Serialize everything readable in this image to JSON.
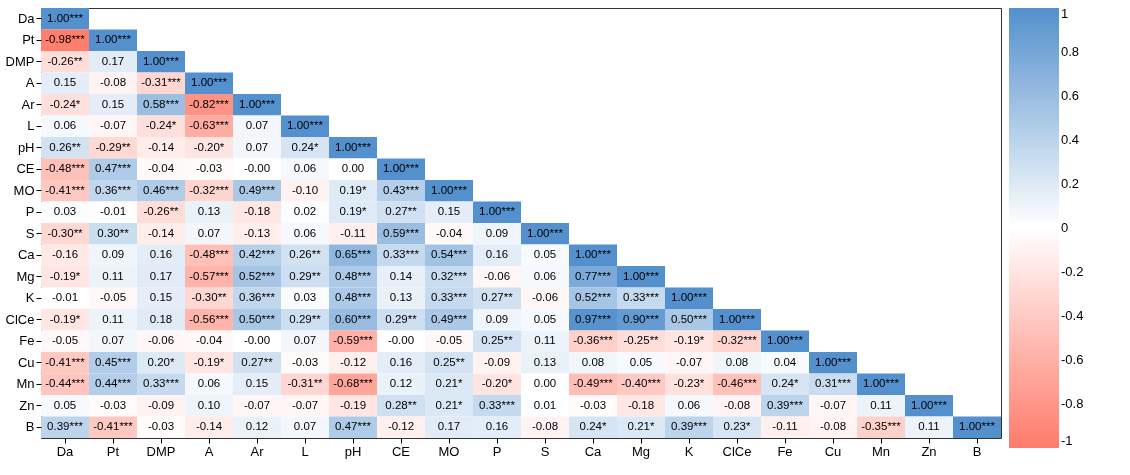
{
  "chart_data": {
    "type": "heatmap",
    "categories": [
      "Da",
      "Pt",
      "DMP",
      "A",
      "Ar",
      "L",
      "pH",
      "CE",
      "MO",
      "P",
      "S",
      "Ca",
      "Mg",
      "K",
      "ClCe",
      "Fe",
      "Cu",
      "Mn",
      "Zn",
      "B"
    ],
    "y_categories": [
      "Da",
      "Pt",
      "DMP",
      "A",
      "Ar",
      "L",
      "pH",
      "CE",
      "MO",
      "P",
      "S",
      "Ca",
      "Mg",
      "K",
      "ClCe",
      "Fe",
      "Cu",
      "Mn",
      "Zn",
      "B"
    ],
    "cells": [
      [
        1.0,
        null,
        null,
        null,
        null,
        null,
        null,
        null,
        null,
        null,
        null,
        null,
        null,
        null,
        null,
        null,
        null,
        null,
        null,
        null
      ],
      [
        -0.98,
        1.0,
        null,
        null,
        null,
        null,
        null,
        null,
        null,
        null,
        null,
        null,
        null,
        null,
        null,
        null,
        null,
        null,
        null,
        null
      ],
      [
        -0.26,
        0.17,
        1.0,
        null,
        null,
        null,
        null,
        null,
        null,
        null,
        null,
        null,
        null,
        null,
        null,
        null,
        null,
        null,
        null,
        null
      ],
      [
        0.15,
        -0.08,
        -0.31,
        1.0,
        null,
        null,
        null,
        null,
        null,
        null,
        null,
        null,
        null,
        null,
        null,
        null,
        null,
        null,
        null,
        null
      ],
      [
        -0.24,
        0.15,
        0.58,
        -0.82,
        1.0,
        null,
        null,
        null,
        null,
        null,
        null,
        null,
        null,
        null,
        null,
        null,
        null,
        null,
        null,
        null
      ],
      [
        0.06,
        -0.07,
        -0.24,
        -0.63,
        0.07,
        1.0,
        null,
        null,
        null,
        null,
        null,
        null,
        null,
        null,
        null,
        null,
        null,
        null,
        null,
        null
      ],
      [
        0.26,
        -0.29,
        -0.14,
        -0.2,
        0.07,
        0.24,
        1.0,
        null,
        null,
        null,
        null,
        null,
        null,
        null,
        null,
        null,
        null,
        null,
        null,
        null
      ],
      [
        -0.48,
        0.47,
        -0.04,
        -0.03,
        0.0,
        0.06,
        0.0,
        1.0,
        null,
        null,
        null,
        null,
        null,
        null,
        null,
        null,
        null,
        null,
        null,
        null
      ],
      [
        -0.41,
        0.36,
        0.46,
        -0.32,
        0.49,
        -0.1,
        0.19,
        0.43,
        1.0,
        null,
        null,
        null,
        null,
        null,
        null,
        null,
        null,
        null,
        null,
        null
      ],
      [
        0.03,
        -0.01,
        -0.26,
        0.13,
        -0.18,
        0.02,
        0.19,
        0.27,
        0.15,
        1.0,
        null,
        null,
        null,
        null,
        null,
        null,
        null,
        null,
        null,
        null
      ],
      [
        -0.3,
        0.3,
        -0.14,
        0.07,
        -0.13,
        0.06,
        -0.11,
        0.59,
        -0.04,
        0.09,
        1.0,
        null,
        null,
        null,
        null,
        null,
        null,
        null,
        null,
        null
      ],
      [
        -0.16,
        0.09,
        0.16,
        -0.48,
        0.42,
        0.26,
        0.65,
        0.33,
        0.54,
        0.16,
        0.05,
        1.0,
        null,
        null,
        null,
        null,
        null,
        null,
        null,
        null
      ],
      [
        -0.19,
        0.11,
        0.17,
        -0.57,
        0.52,
        0.29,
        0.48,
        0.14,
        0.32,
        -0.06,
        0.06,
        0.77,
        1.0,
        null,
        null,
        null,
        null,
        null,
        null,
        null
      ],
      [
        -0.01,
        -0.05,
        0.15,
        -0.3,
        0.36,
        0.03,
        0.48,
        0.13,
        0.33,
        0.27,
        -0.06,
        0.52,
        0.33,
        1.0,
        null,
        null,
        null,
        null,
        null,
        null
      ],
      [
        -0.19,
        0.11,
        0.18,
        -0.56,
        0.5,
        0.29,
        0.6,
        0.29,
        0.49,
        0.09,
        0.05,
        0.97,
        0.9,
        0.5,
        1.0,
        null,
        null,
        null,
        null,
        null
      ],
      [
        -0.05,
        0.07,
        -0.06,
        -0.04,
        0.0,
        0.07,
        -0.59,
        0.0,
        -0.05,
        0.25,
        0.11,
        -0.36,
        -0.25,
        -0.19,
        -0.32,
        1.0,
        null,
        null,
        null,
        null
      ],
      [
        -0.41,
        0.45,
        0.2,
        -0.19,
        0.27,
        -0.03,
        -0.12,
        0.16,
        0.25,
        -0.09,
        0.13,
        0.08,
        0.05,
        -0.07,
        0.08,
        0.04,
        1.0,
        null,
        null,
        null
      ],
      [
        -0.44,
        0.44,
        0.33,
        0.06,
        0.15,
        -0.31,
        -0.68,
        0.12,
        0.21,
        -0.2,
        0.0,
        -0.49,
        -0.4,
        -0.23,
        -0.46,
        0.24,
        0.31,
        1.0,
        null,
        null
      ],
      [
        0.05,
        -0.03,
        -0.09,
        0.1,
        -0.07,
        -0.07,
        -0.19,
        0.28,
        0.21,
        0.33,
        0.01,
        -0.03,
        -0.18,
        0.06,
        -0.08,
        0.39,
        -0.07,
        0.11,
        1.0,
        null
      ],
      [
        0.39,
        -0.41,
        -0.03,
        -0.14,
        0.12,
        0.07,
        0.47,
        -0.12,
        0.17,
        0.16,
        -0.08,
        0.24,
        0.21,
        0.39,
        0.23,
        -0.11,
        -0.08,
        -0.35,
        0.11,
        1.0
      ]
    ],
    "cell_labels": [
      [
        "1.00***",
        null,
        null,
        null,
        null,
        null,
        null,
        null,
        null,
        null,
        null,
        null,
        null,
        null,
        null,
        null,
        null,
        null,
        null,
        null
      ],
      [
        "-0.98***",
        "1.00***",
        null,
        null,
        null,
        null,
        null,
        null,
        null,
        null,
        null,
        null,
        null,
        null,
        null,
        null,
        null,
        null,
        null,
        null
      ],
      [
        "-0.26**",
        "0.17",
        "1.00***",
        null,
        null,
        null,
        null,
        null,
        null,
        null,
        null,
        null,
        null,
        null,
        null,
        null,
        null,
        null,
        null,
        null
      ],
      [
        "0.15",
        "-0.08",
        "-0.31***",
        "1.00***",
        null,
        null,
        null,
        null,
        null,
        null,
        null,
        null,
        null,
        null,
        null,
        null,
        null,
        null,
        null,
        null
      ],
      [
        "-0.24*",
        "0.15",
        "0.58***",
        "-0.82***",
        "1.00***",
        null,
        null,
        null,
        null,
        null,
        null,
        null,
        null,
        null,
        null,
        null,
        null,
        null,
        null,
        null
      ],
      [
        "0.06",
        "-0.07",
        "-0.24*",
        "-0.63***",
        "0.07",
        "1.00***",
        null,
        null,
        null,
        null,
        null,
        null,
        null,
        null,
        null,
        null,
        null,
        null,
        null,
        null
      ],
      [
        "0.26**",
        "-0.29**",
        "-0.14",
        "-0.20*",
        "0.07",
        "0.24*",
        "1.00***",
        null,
        null,
        null,
        null,
        null,
        null,
        null,
        null,
        null,
        null,
        null,
        null,
        null
      ],
      [
        "-0.48***",
        "0.47***",
        "-0.04",
        "-0.03",
        "-0.00",
        "0.06",
        "0.00",
        "1.00***",
        null,
        null,
        null,
        null,
        null,
        null,
        null,
        null,
        null,
        null,
        null,
        null
      ],
      [
        "-0.41***",
        "0.36***",
        "0.46***",
        "-0.32***",
        "0.49***",
        "-0.10",
        "0.19*",
        "0.43***",
        "1.00***",
        null,
        null,
        null,
        null,
        null,
        null,
        null,
        null,
        null,
        null,
        null
      ],
      [
        "0.03",
        "-0.01",
        "-0.26**",
        "0.13",
        "-0.18",
        "0.02",
        "0.19*",
        "0.27**",
        "0.15",
        "1.00***",
        null,
        null,
        null,
        null,
        null,
        null,
        null,
        null,
        null,
        null
      ],
      [
        "-0.30**",
        "0.30**",
        "-0.14",
        "0.07",
        "-0.13",
        "0.06",
        "-0.11",
        "0.59***",
        "-0.04",
        "0.09",
        "1.00***",
        null,
        null,
        null,
        null,
        null,
        null,
        null,
        null,
        null
      ],
      [
        "-0.16",
        "0.09",
        "0.16",
        "-0.48***",
        "0.42***",
        "0.26**",
        "0.65***",
        "0.33***",
        "0.54***",
        "0.16",
        "0.05",
        "1.00***",
        null,
        null,
        null,
        null,
        null,
        null,
        null,
        null
      ],
      [
        "-0.19*",
        "0.11",
        "0.17",
        "-0.57***",
        "0.52***",
        "0.29**",
        "0.48***",
        "0.14",
        "0.32***",
        "-0.06",
        "0.06",
        "0.77***",
        "1.00***",
        null,
        null,
        null,
        null,
        null,
        null,
        null
      ],
      [
        "-0.01",
        "-0.05",
        "0.15",
        "-0.30**",
        "0.36***",
        "0.03",
        "0.48***",
        "0.13",
        "0.33***",
        "0.27**",
        "-0.06",
        "0.52***",
        "0.33***",
        "1.00***",
        null,
        null,
        null,
        null,
        null,
        null
      ],
      [
        "-0.19*",
        "0.11",
        "0.18",
        "-0.56***",
        "0.50***",
        "0.29**",
        "0.60***",
        "0.29**",
        "0.49***",
        "0.09",
        "0.05",
        "0.97***",
        "0.90***",
        "0.50***",
        "1.00***",
        null,
        null,
        null,
        null,
        null
      ],
      [
        "-0.05",
        "0.07",
        "-0.06",
        "-0.04",
        "-0.00",
        "0.07",
        "-0.59***",
        "-0.00",
        "-0.05",
        "0.25**",
        "0.11",
        "-0.36***",
        "-0.25**",
        "-0.19*",
        "-0.32***",
        "1.00***",
        null,
        null,
        null,
        null
      ],
      [
        "-0.41***",
        "0.45***",
        "0.20*",
        "-0.19*",
        "0.27**",
        "-0.03",
        "-0.12",
        "0.16",
        "0.25**",
        "-0.09",
        "0.13",
        "0.08",
        "0.05",
        "-0.07",
        "0.08",
        "0.04",
        "1.00***",
        null,
        null,
        null
      ],
      [
        "-0.44***",
        "0.44***",
        "0.33***",
        "0.06",
        "0.15",
        "-0.31**",
        "-0.68***",
        "0.12",
        "0.21*",
        "-0.20*",
        "0.00",
        "-0.49***",
        "-0.40***",
        "-0.23*",
        "-0.46***",
        "0.24*",
        "0.31***",
        "1.00***",
        null,
        null
      ],
      [
        "0.05",
        "-0.03",
        "-0.09",
        "0.10",
        "-0.07",
        "-0.07",
        "-0.19",
        "0.28**",
        "0.21*",
        "0.33***",
        "0.01",
        "-0.03",
        "-0.18",
        "0.06",
        "-0.08",
        "0.39***",
        "-0.07",
        "0.11",
        "1.00***",
        null
      ],
      [
        "0.39***",
        "-0.41***",
        "-0.03",
        "-0.14",
        "0.12",
        "0.07",
        "0.47***",
        "-0.12",
        "0.17",
        "0.16",
        "-0.08",
        "0.24*",
        "0.21*",
        "0.39***",
        "0.23*",
        "-0.11",
        "-0.08",
        "-0.35***",
        "0.11",
        "1.00***"
      ]
    ],
    "clim": [
      -1,
      1
    ],
    "cticks": [
      -1,
      -0.8,
      -0.6,
      -0.4,
      -0.2,
      0,
      0.2,
      0.4,
      0.6,
      0.8,
      1
    ]
  }
}
